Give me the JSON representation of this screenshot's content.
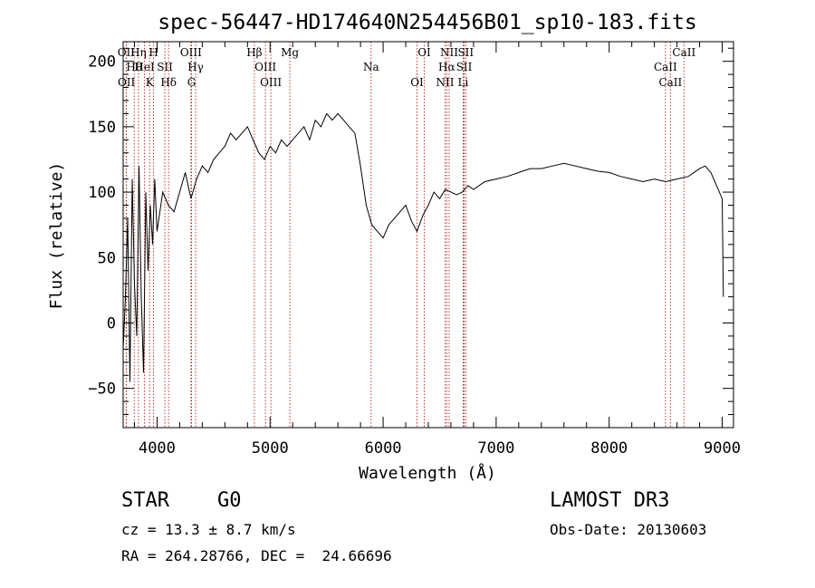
{
  "chart_data": {
    "type": "line",
    "title": "spec-56447-HD174640N254456B01_sp10-183.fits",
    "xlabel": "Wavelength (Å)",
    "ylabel": "Flux (relative)",
    "xlim": [
      3700,
      9100
    ],
    "ylim": [
      -80,
      215
    ],
    "x_ticks": [
      4000,
      5000,
      6000,
      7000,
      8000,
      9000
    ],
    "y_ticks": [
      -50,
      0,
      50,
      100,
      150,
      200
    ],
    "grid": false,
    "series": [
      {
        "x": [
          3700,
          3720,
          3740,
          3760,
          3780,
          3800,
          3820,
          3840,
          3860,
          3880,
          3900,
          3920,
          3940,
          3960,
          3980,
          4000,
          4050,
          4100,
          4150,
          4200,
          4250,
          4300,
          4350,
          4400,
          4450,
          4500,
          4550,
          4600,
          4650,
          4700,
          4750,
          4800,
          4850,
          4900,
          4950,
          5000,
          5050,
          5100,
          5150,
          5200,
          5250,
          5300,
          5350,
          5400,
          5450,
          5500,
          5550,
          5600,
          5650,
          5700,
          5750,
          5800,
          5850,
          5900,
          5950,
          6000,
          6050,
          6100,
          6150,
          6200,
          6250,
          6300,
          6350,
          6400,
          6450,
          6500,
          6550,
          6600,
          6650,
          6700,
          6750,
          6800,
          6900,
          7000,
          7100,
          7200,
          7300,
          7400,
          7500,
          7600,
          7700,
          7800,
          7900,
          8000,
          8100,
          8200,
          8300,
          8400,
          8500,
          8600,
          8700,
          8800,
          8850,
          8900,
          8950,
          9000,
          9010
        ],
        "y": [
          -20,
          20,
          80,
          -45,
          110,
          30,
          -10,
          120,
          20,
          -38,
          100,
          40,
          90,
          60,
          110,
          70,
          100,
          90,
          85,
          100,
          115,
          95,
          110,
          120,
          115,
          125,
          130,
          135,
          145,
          140,
          145,
          150,
          140,
          130,
          125,
          135,
          130,
          140,
          135,
          140,
          145,
          150,
          140,
          155,
          150,
          160,
          155,
          160,
          155,
          150,
          145,
          120,
          90,
          75,
          70,
          65,
          75,
          80,
          85,
          90,
          78,
          70,
          82,
          90,
          100,
          95,
          102,
          100,
          98,
          100,
          105,
          102,
          108,
          110,
          112,
          115,
          118,
          118,
          120,
          122,
          120,
          118,
          116,
          115,
          112,
          110,
          108,
          110,
          108,
          110,
          112,
          118,
          120,
          115,
          105,
          95,
          20
        ]
      }
    ],
    "line_markers": [
      {
        "label": "OII",
        "x": 3727
      },
      {
        "label": "Hθ",
        "x": 3798
      },
      {
        "label": "OII",
        "x": 3729
      },
      {
        "label": "Hη",
        "x": 3835
      },
      {
        "label": "HeI",
        "x": 3889
      },
      {
        "label": "K",
        "x": 3934
      },
      {
        "label": "H",
        "x": 3969
      },
      {
        "label": "SII",
        "x": 4069
      },
      {
        "label": "Hδ",
        "x": 4102
      },
      {
        "label": "OIII",
        "x": 4300
      },
      {
        "label": "Hγ",
        "x": 4341
      },
      {
        "label": "G",
        "x": 4305
      },
      {
        "label": "Hβ",
        "x": 4861
      },
      {
        "label": "OIII",
        "x": 4959
      },
      {
        "label": "OIII",
        "x": 5007
      },
      {
        "label": "Mg",
        "x": 5175
      },
      {
        "label": "Na",
        "x": 5894
      },
      {
        "label": "OI",
        "x": 6300
      },
      {
        "label": "OI",
        "x": 6364
      },
      {
        "label": "Hα",
        "x": 6563
      },
      {
        "label": "NII",
        "x": 6548
      },
      {
        "label": "NII",
        "x": 6584
      },
      {
        "label": "SII",
        "x": 6717
      },
      {
        "label": "Li",
        "x": 6708
      },
      {
        "label": "SII",
        "x": 6731
      },
      {
        "label": "CaII",
        "x": 8498
      },
      {
        "label": "CaII",
        "x": 8542
      },
      {
        "label": "CaII",
        "x": 8662
      }
    ]
  },
  "info": {
    "class_label": "STAR    G0",
    "survey": "LAMOST DR3",
    "cz": "cz = 13.3 ± 8.7 km/s",
    "obs_date": "Obs-Date: 20130603",
    "coords": "RA = 264.28766, DEC =  24.66696"
  },
  "colors": {
    "axis": "#000000",
    "spectrum": "#000000",
    "marker_line": "#b22222"
  }
}
